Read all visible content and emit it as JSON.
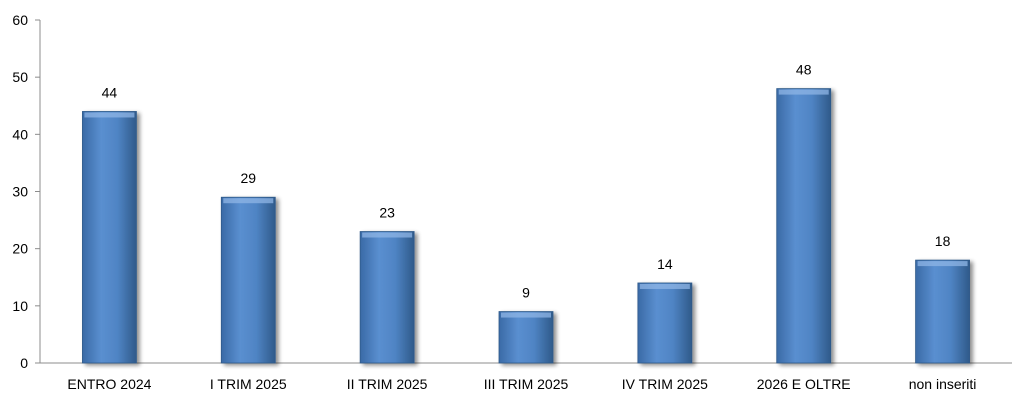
{
  "chart_data": {
    "type": "bar",
    "categories": [
      "ENTRO 2024",
      "I TRIM 2025",
      "II TRIM 2025",
      "III TRIM 2025",
      "IV TRIM 2025",
      "2026 E OLTRE",
      "non inseriti"
    ],
    "values": [
      44,
      29,
      23,
      9,
      14,
      48,
      18
    ],
    "yticks": [
      "0",
      "10",
      "20",
      "30",
      "40",
      "50",
      "60"
    ],
    "ylim": [
      0,
      60
    ],
    "title": "",
    "xlabel": "",
    "ylabel": "",
    "grid": false,
    "legend": "none",
    "bar_color": "#4a7ebb",
    "bar_edge_color": "#2f5a8a"
  }
}
